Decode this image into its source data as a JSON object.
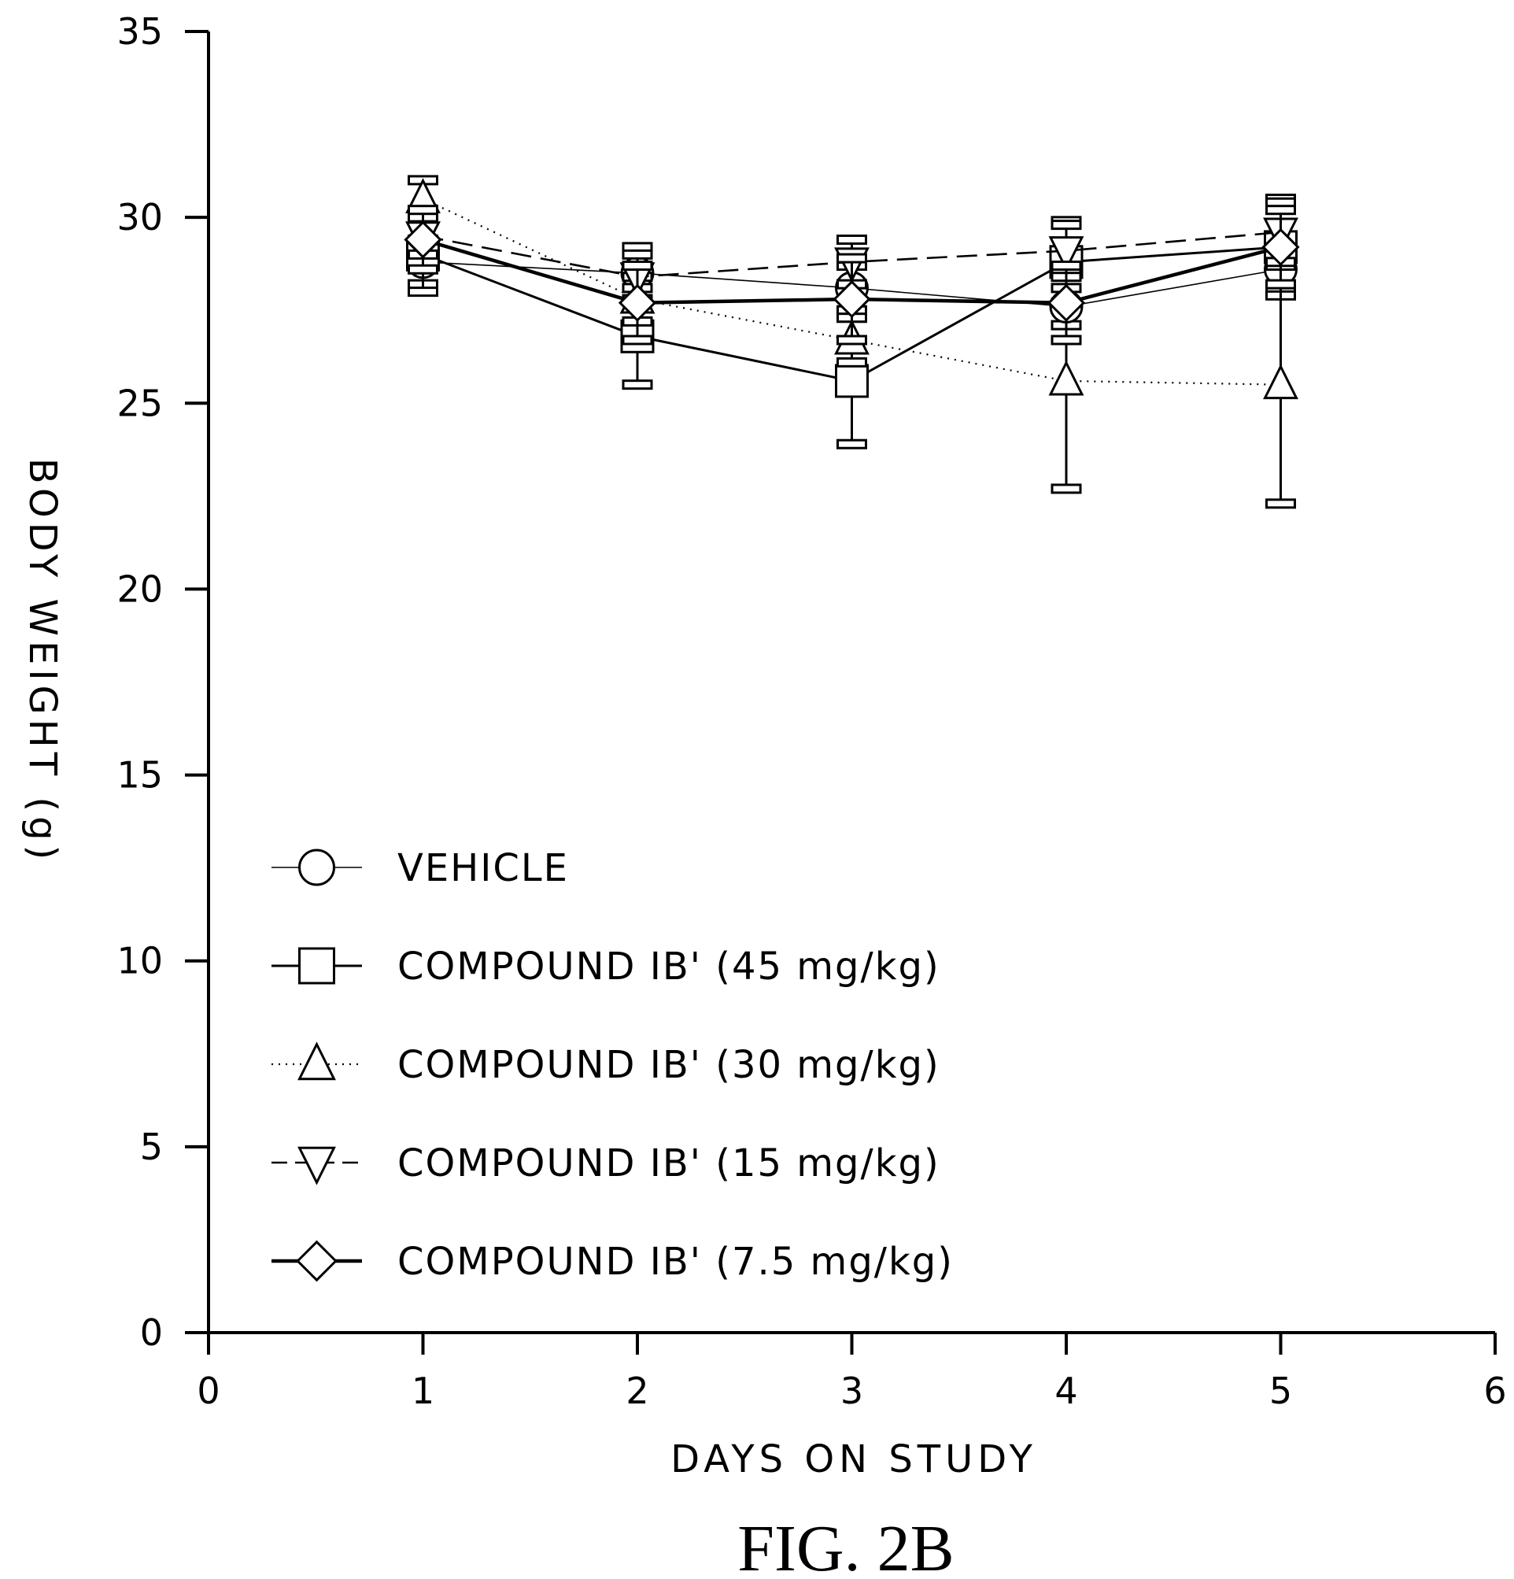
{
  "figure_label": "FIG. 2B",
  "chart_data": {
    "type": "line",
    "xlabel": "DAYS ON STUDY",
    "ylabel": "BODY WEIGHT (g)",
    "xlim": [
      0,
      6
    ],
    "ylim": [
      0,
      35
    ],
    "x_ticks": [
      "0",
      "1",
      "2",
      "3",
      "4",
      "5",
      "6"
    ],
    "y_ticks": [
      "0",
      "5",
      "10",
      "15",
      "20",
      "25",
      "30",
      "35"
    ],
    "grid": false,
    "legend_position": "lower-left",
    "x": [
      1,
      2,
      3,
      4,
      5
    ],
    "series": [
      {
        "name": "VEHICLE",
        "marker": "circle",
        "line_style": "thin-solid",
        "values": [
          28.8,
          28.5,
          28.1,
          27.6,
          28.6
        ],
        "error": [
          0.6,
          0.7,
          0.6,
          0.5,
          0.6
        ]
      },
      {
        "name": "COMPOUND IB' (45 mg/kg)",
        "marker": "square",
        "line_style": "solid",
        "values": [
          29.0,
          26.8,
          25.6,
          28.8,
          29.2
        ],
        "error": [
          1.0,
          1.3,
          1.7,
          1.1,
          1.3
        ]
      },
      {
        "name": "COMPOUND IB' (30 mg/kg)",
        "marker": "triangle-up",
        "line_style": "dotted",
        "values": [
          30.5,
          27.8,
          26.7,
          25.6,
          25.5
        ],
        "error": [
          0.5,
          0.6,
          0.6,
          2.9,
          3.2
        ]
      },
      {
        "name": "COMPOUND IB' (15 mg/kg)",
        "marker": "triangle-down",
        "line_style": "dashed",
        "values": [
          29.5,
          28.4,
          28.8,
          29.1,
          29.6
        ],
        "error": [
          0.5,
          0.6,
          0.6,
          0.7,
          0.8
        ]
      },
      {
        "name": "COMPOUND IB' (7.5 mg/kg)",
        "marker": "diamond",
        "line_style": "thick-solid",
        "values": [
          29.4,
          27.7,
          27.8,
          27.7,
          29.2
        ],
        "error": [
          0.8,
          1.0,
          1.1,
          1.0,
          1.0
        ]
      }
    ]
  }
}
